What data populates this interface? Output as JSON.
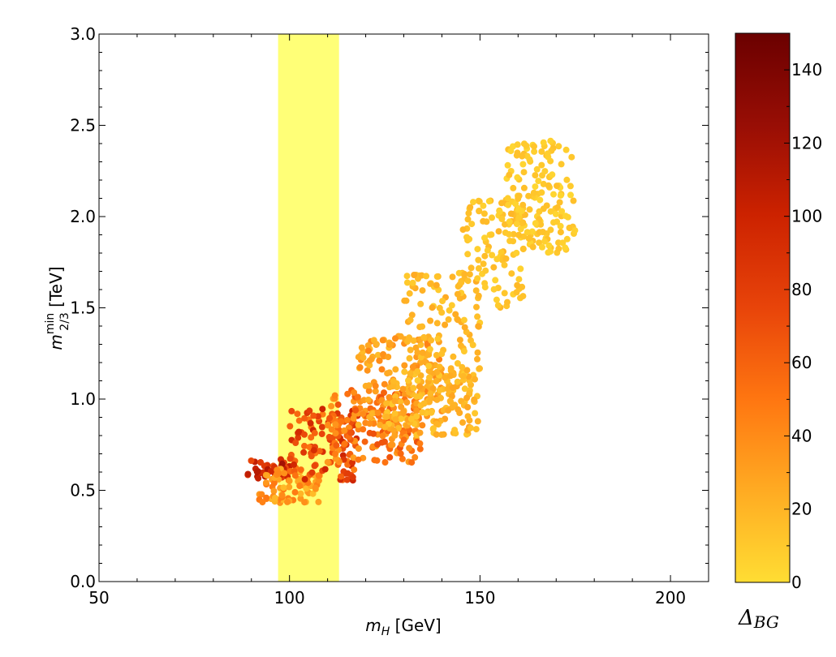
{
  "chart_data": {
    "type": "scatter",
    "title": "",
    "xlabel": {
      "main": "m",
      "sub": "H",
      "unit": "[GeV]"
    },
    "ylabel": {
      "main": "m",
      "sup": "min",
      "sub": "2/3",
      "unit": "[TeV]"
    },
    "xlim": [
      50,
      210
    ],
    "ylim": [
      0,
      3.0
    ],
    "x_ticks": [
      50,
      100,
      150,
      200
    ],
    "y_ticks": [
      "0.0",
      "0.5",
      "1.0",
      "1.5",
      "2.0",
      "2.5",
      "3.0"
    ],
    "grid": false,
    "highlight_band": {
      "x_range": [
        97,
        113
      ],
      "color": "#ffff77"
    },
    "colorbar": {
      "title": {
        "main": "Δ",
        "sub": "BG"
      },
      "range": [
        0,
        150
      ],
      "ticks": [
        "0",
        "20",
        "40",
        "60",
        "80",
        "100",
        "120",
        "140"
      ],
      "colormap": [
        "#ffdd33",
        "#ffaa22",
        "#ff7711",
        "#e8440a",
        "#cc2200",
        "#990e05",
        "#6b0000"
      ]
    },
    "regions": [
      {
        "x": [
          89,
          100
        ],
        "y": [
          0.55,
          0.67
        ],
        "c": [
          70,
          120
        ],
        "n": 40
      },
      {
        "x": [
          92,
          108
        ],
        "y": [
          0.43,
          0.62
        ],
        "c": [
          15,
          50
        ],
        "n": 80
      },
      {
        "x": [
          100,
          118
        ],
        "y": [
          0.55,
          0.95
        ],
        "c": [
          45,
          100
        ],
        "n": 110
      },
      {
        "x": [
          110,
          135
        ],
        "y": [
          0.65,
          1.05
        ],
        "c": [
          30,
          70
        ],
        "n": 170
      },
      {
        "x": [
          118,
          140
        ],
        "y": [
          0.85,
          1.35
        ],
        "c": [
          15,
          45
        ],
        "n": 150
      },
      {
        "x": [
          125,
          150
        ],
        "y": [
          0.8,
          1.15
        ],
        "c": [
          10,
          30
        ],
        "n": 140
      },
      {
        "x": [
          130,
          150
        ],
        "y": [
          1.1,
          1.7
        ],
        "c": [
          8,
          25
        ],
        "n": 120
      },
      {
        "x": [
          145,
          162
        ],
        "y": [
          1.5,
          2.1
        ],
        "c": [
          5,
          20
        ],
        "n": 110
      },
      {
        "x": [
          157,
          175
        ],
        "y": [
          1.8,
          2.42
        ],
        "c": [
          3,
          15
        ],
        "n": 150
      }
    ]
  }
}
